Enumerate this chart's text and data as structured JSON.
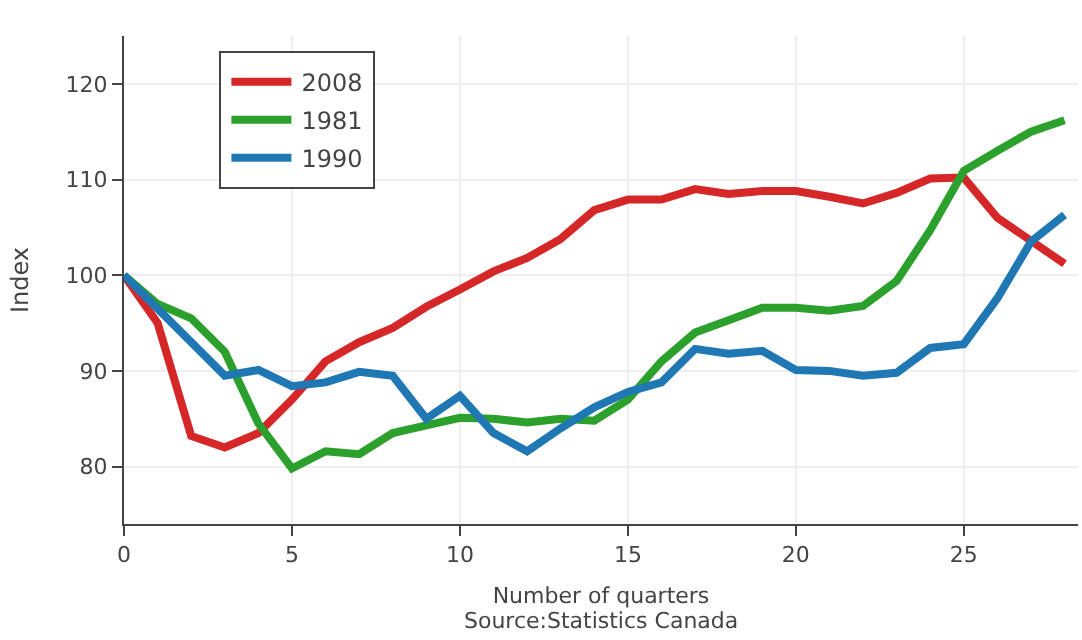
{
  "chart_data": {
    "type": "line",
    "xlabel": "Number of quarters",
    "ylabel": "Index",
    "x": [
      0,
      1,
      2,
      3,
      4,
      5,
      6,
      7,
      8,
      9,
      10,
      11,
      12,
      13,
      14,
      15,
      16,
      17,
      18,
      19,
      20,
      21,
      22,
      23,
      24,
      25,
      26,
      27,
      28
    ],
    "series": [
      {
        "name": "2008",
        "color": "#d62728",
        "values": [
          100,
          95,
          83.2,
          82,
          83.5,
          87,
          91,
          93,
          94.5,
          96.7,
          98.5,
          100.4,
          101.8,
          103.8,
          106.8,
          107.9,
          107.9,
          109,
          108.5,
          108.8,
          108.8,
          108.2,
          107.5,
          108.6,
          110.1,
          110.2,
          106,
          103.6,
          101.2
        ]
      },
      {
        "name": "1981",
        "color": "#2ca02c",
        "values": [
          100,
          97,
          95.5,
          92,
          84.5,
          79.8,
          81.6,
          81.3,
          83.5,
          84.3,
          85.1,
          85,
          84.6,
          85,
          84.8,
          87,
          91,
          94,
          95.3,
          96.6,
          96.6,
          96.3,
          96.8,
          99.4,
          104.7,
          110.9,
          113,
          115,
          116.2
        ]
      },
      {
        "name": "1990",
        "color": "#1f77b4",
        "values": [
          100,
          96.5,
          93,
          89.5,
          90.1,
          88.4,
          88.8,
          89.9,
          89.5,
          85,
          87.4,
          83.5,
          81.6,
          84,
          86.2,
          87.8,
          88.8,
          92.3,
          91.8,
          92.1,
          90.1,
          90,
          89.5,
          89.8,
          92.4,
          92.8,
          97.6,
          103.5,
          106.3
        ]
      }
    ],
    "xlim": [
      0,
      28.4
    ],
    "xticks": [
      0,
      5,
      10,
      15,
      20,
      25
    ],
    "ylim": [
      74,
      125
    ],
    "yticks": [
      80,
      90,
      100,
      110,
      120
    ],
    "grid": true,
    "legend": "top left",
    "marker": "none",
    "line_style": "solid",
    "annotations": [
      "Source:Statistics Canada"
    ]
  }
}
